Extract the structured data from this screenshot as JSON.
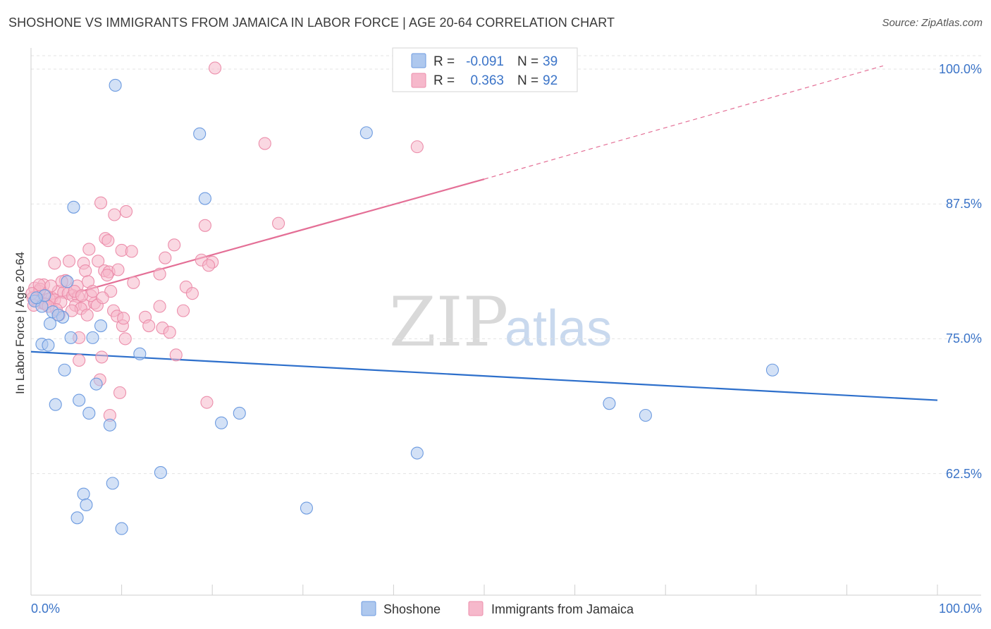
{
  "title": "SHOSHONE VS IMMIGRANTS FROM JAMAICA IN LABOR FORCE | AGE 20-64 CORRELATION CHART",
  "source": "Source: ZipAtlas.com",
  "watermark": {
    "zip": "ZIP",
    "atlas": "atlas"
  },
  "colors": {
    "blue_fill": "#aec8ee",
    "blue_stroke": "#6d9be0",
    "blue_line": "#2d6fcb",
    "pink_fill": "#f6b8cb",
    "pink_stroke": "#ec8eab",
    "pink_line": "#e46f96",
    "grid": "#e3e3e3",
    "tick_label": "#3b74c8"
  },
  "legend": {
    "rows": [
      {
        "r_label": "R =",
        "r_value": "-0.091",
        "n_label": "N =",
        "n_value": "39"
      },
      {
        "r_label": "R =",
        "r_value": "0.363",
        "n_label": "N =",
        "n_value": "92"
      }
    ]
  },
  "chart_data": {
    "type": "scatter",
    "title": "SHOSHONE VS IMMIGRANTS FROM JAMAICA IN LABOR FORCE | AGE 20-64 CORRELATION CHART",
    "xlabel": "",
    "ylabel": "In Labor Force | Age 20-64",
    "xlim": [
      0,
      100
    ],
    "ylim": [
      50.5,
      102
    ],
    "x_tick_labels": [
      "0.0%",
      "100.0%"
    ],
    "y_ticks": [
      62.5,
      75.0,
      87.5,
      100.0
    ],
    "y_tick_labels": [
      "62.5%",
      "75.0%",
      "87.5%",
      "100.0%"
    ],
    "grid": true,
    "series": [
      {
        "name": "Shoshone",
        "r": -0.091,
        "n": 39,
        "trend": {
          "x0": 0,
          "y0": 73.8,
          "x1": 100,
          "y1": 69.3
        },
        "points": [
          [
            9.3,
            98.5
          ],
          [
            18.6,
            94.0
          ],
          [
            37.0,
            94.1
          ],
          [
            19.2,
            88.0
          ],
          [
            4.7,
            87.2
          ],
          [
            4.0,
            80.3
          ],
          [
            0.4,
            78.5
          ],
          [
            1.2,
            78.0
          ],
          [
            2.4,
            77.5
          ],
          [
            3.5,
            77.0
          ],
          [
            2.1,
            76.4
          ],
          [
            7.7,
            76.2
          ],
          [
            4.4,
            75.1
          ],
          [
            6.8,
            75.1
          ],
          [
            1.2,
            74.5
          ],
          [
            1.9,
            74.4
          ],
          [
            12.0,
            73.6
          ],
          [
            3.7,
            72.1
          ],
          [
            7.2,
            70.8
          ],
          [
            5.3,
            69.3
          ],
          [
            2.7,
            68.9
          ],
          [
            6.4,
            68.1
          ],
          [
            23.0,
            68.1
          ],
          [
            21.0,
            67.2
          ],
          [
            8.7,
            67.0
          ],
          [
            63.8,
            69.0
          ],
          [
            67.8,
            67.9
          ],
          [
            81.8,
            72.1
          ],
          [
            42.6,
            64.4
          ],
          [
            14.3,
            62.6
          ],
          [
            9.0,
            61.6
          ],
          [
            5.8,
            60.6
          ],
          [
            6.1,
            59.6
          ],
          [
            5.1,
            58.4
          ],
          [
            30.4,
            59.3
          ],
          [
            10.0,
            57.4
          ],
          [
            1.5,
            79.0
          ],
          [
            3.0,
            77.2
          ],
          [
            0.6,
            78.8
          ]
        ]
      },
      {
        "name": "Immigrants from Jamaica",
        "r": 0.363,
        "n": 92,
        "trend": {
          "x0": 0,
          "y0": 78.1,
          "x1": 50,
          "y1": 89.8
        },
        "trend_dashed": {
          "x0": 50,
          "y0": 89.8,
          "x1": 94,
          "y1": 100.3
        },
        "points": [
          [
            20.3,
            100.1
          ],
          [
            25.8,
            93.1
          ],
          [
            42.6,
            92.8
          ],
          [
            7.7,
            87.6
          ],
          [
            10.5,
            86.8
          ],
          [
            9.2,
            86.5
          ],
          [
            19.2,
            85.5
          ],
          [
            27.3,
            85.7
          ],
          [
            8.2,
            84.3
          ],
          [
            8.5,
            84.1
          ],
          [
            15.8,
            83.7
          ],
          [
            6.4,
            83.3
          ],
          [
            10.0,
            83.2
          ],
          [
            11.1,
            83.1
          ],
          [
            14.8,
            82.5
          ],
          [
            18.8,
            82.3
          ],
          [
            20.0,
            82.1
          ],
          [
            19.6,
            81.8
          ],
          [
            4.2,
            82.2
          ],
          [
            5.8,
            82.0
          ],
          [
            7.4,
            82.2
          ],
          [
            2.6,
            82.0
          ],
          [
            8.1,
            81.3
          ],
          [
            6.0,
            81.3
          ],
          [
            8.6,
            81.2
          ],
          [
            14.2,
            81.0
          ],
          [
            3.8,
            80.4
          ],
          [
            6.3,
            80.3
          ],
          [
            1.4,
            80.0
          ],
          [
            5.1,
            79.9
          ],
          [
            17.1,
            79.8
          ],
          [
            8.8,
            79.4
          ],
          [
            0.4,
            79.7
          ],
          [
            0.9,
            79.4
          ],
          [
            1.7,
            79.0
          ],
          [
            2.3,
            78.8
          ],
          [
            3.0,
            79.4
          ],
          [
            3.6,
            79.3
          ],
          [
            4.1,
            79.2
          ],
          [
            4.6,
            79.0
          ],
          [
            5.2,
            78.9
          ],
          [
            0.2,
            78.8
          ],
          [
            0.6,
            78.5
          ],
          [
            1.3,
            78.3
          ],
          [
            2.0,
            78.7
          ],
          [
            2.6,
            78.6
          ],
          [
            3.3,
            78.4
          ],
          [
            4.9,
            78.1
          ],
          [
            5.9,
            78.1
          ],
          [
            7.0,
            78.3
          ],
          [
            0.3,
            78.1
          ],
          [
            1.0,
            79.6
          ],
          [
            6.6,
            79.0
          ],
          [
            7.3,
            78.1
          ],
          [
            5.5,
            77.8
          ],
          [
            4.5,
            77.6
          ],
          [
            3.1,
            77.2
          ],
          [
            2.8,
            77.7
          ],
          [
            6.2,
            77.2
          ],
          [
            9.1,
            77.6
          ],
          [
            14.2,
            78.0
          ],
          [
            16.8,
            77.6
          ],
          [
            17.8,
            79.2
          ],
          [
            12.6,
            77.0
          ],
          [
            13.0,
            76.2
          ],
          [
            14.5,
            76.0
          ],
          [
            9.5,
            77.1
          ],
          [
            10.1,
            76.2
          ],
          [
            10.2,
            76.9
          ],
          [
            15.3,
            75.6
          ],
          [
            5.3,
            75.1
          ],
          [
            10.4,
            75.0
          ],
          [
            16.0,
            73.5
          ],
          [
            7.8,
            73.3
          ],
          [
            5.3,
            73.0
          ],
          [
            7.6,
            71.2
          ],
          [
            9.8,
            70.0
          ],
          [
            19.4,
            69.1
          ],
          [
            8.7,
            67.9
          ],
          [
            0.9,
            80.0
          ],
          [
            1.6,
            78.2
          ],
          [
            2.2,
            79.9
          ],
          [
            3.4,
            80.3
          ],
          [
            4.8,
            79.4
          ],
          [
            5.6,
            79.0
          ],
          [
            6.8,
            79.4
          ],
          [
            7.9,
            78.8
          ],
          [
            8.4,
            80.9
          ],
          [
            9.6,
            81.4
          ],
          [
            11.3,
            80.2
          ],
          [
            0.1,
            79.2
          ],
          [
            1.9,
            78.0
          ]
        ]
      }
    ]
  },
  "bottom_legend": [
    "Shoshone",
    "Immigrants from Jamaica"
  ]
}
